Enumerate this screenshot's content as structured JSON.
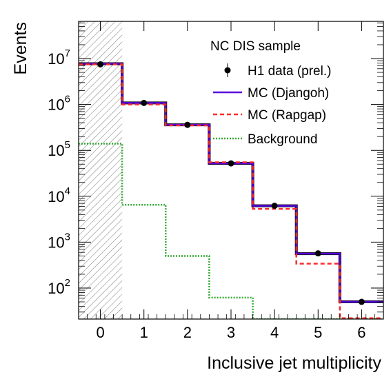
{
  "chart_data": {
    "type": "histogram",
    "xlabel": "Inclusive jet multiplicity",
    "ylabel": "Events",
    "xlim": [
      -0.5,
      6.5
    ],
    "ylim": [
      20,
      50000000
    ],
    "yscale": "log",
    "categories": [
      "0",
      "1",
      "2",
      "3",
      "4",
      "5",
      "6"
    ],
    "legend_title": "NC DIS sample",
    "legend_position": "top-right",
    "hatched_region": {
      "x_from": -0.5,
      "x_to": 0.5
    },
    "series": [
      {
        "name": "H1 data (prel.)",
        "style": "points",
        "color": "#000000",
        "x": [
          0,
          1,
          2,
          3,
          4,
          5,
          6
        ],
        "values": [
          7500000,
          1080000,
          360000,
          52000,
          6200,
          570,
          50
        ]
      },
      {
        "name": "MC (Djangoh)",
        "style": "solid-step",
        "color": "#5500dd",
        "values": [
          7700000,
          1080000,
          360000,
          52000,
          6200,
          560,
          50
        ]
      },
      {
        "name": "MC (Rapgap)",
        "style": "dashed-step",
        "color": "#ff2a2a",
        "values": [
          7500000,
          1000000,
          350000,
          55000,
          5300,
          340,
          22
        ]
      },
      {
        "name": "Background",
        "style": "dotted-step",
        "color": "#33aa33",
        "values": [
          140000,
          6500,
          500,
          62,
          20,
          20,
          20
        ]
      }
    ]
  }
}
